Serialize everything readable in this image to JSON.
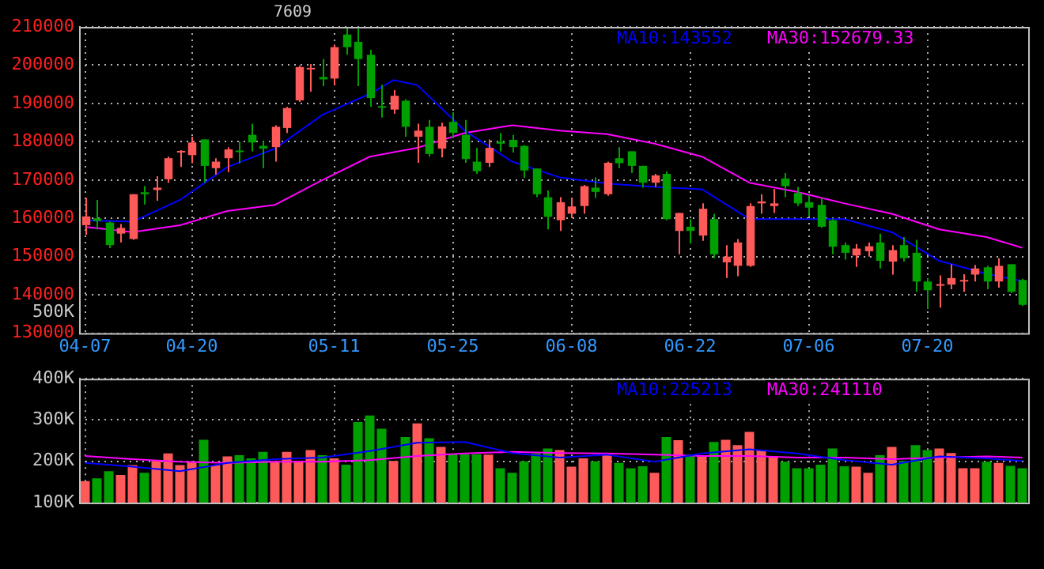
{
  "chart_data": [
    {
      "type": "candlestick",
      "title": "7609",
      "annotations": [
        "500K"
      ],
      "grid": true,
      "legend": "top right",
      "categories": [
        "04-07",
        null,
        null,
        null,
        null,
        null,
        null,
        null,
        null,
        "04-20",
        null,
        null,
        null,
        null,
        null,
        null,
        null,
        null,
        null,
        null,
        null,
        "05-11",
        null,
        null,
        null,
        null,
        null,
        null,
        null,
        null,
        null,
        "05-25",
        null,
        null,
        null,
        null,
        null,
        null,
        null,
        null,
        null,
        "06-08",
        null,
        null,
        null,
        null,
        null,
        null,
        null,
        null,
        null,
        "06-22",
        null,
        null,
        null,
        null,
        null,
        null,
        null,
        null,
        null,
        "07-06",
        null,
        null,
        null,
        null,
        null,
        null,
        null,
        null,
        null,
        "07-20",
        null,
        null,
        null,
        null,
        null,
        null,
        null,
        null
      ],
      "ohlc": [
        [
          158200,
          165300,
          155700,
          160500
        ],
        [
          160000,
          164800,
          157100,
          159300
        ],
        [
          158900,
          159200,
          152200,
          153000
        ],
        [
          156000,
          158500,
          153700,
          157500
        ],
        [
          154600,
          166300,
          154400,
          166300
        ],
        [
          166800,
          168400,
          163600,
          166300
        ],
        [
          167400,
          171000,
          164600,
          168000
        ],
        [
          170200,
          176100,
          169300,
          175700
        ],
        [
          177300,
          177800,
          173400,
          177600
        ],
        [
          176500,
          181300,
          174400,
          179800
        ],
        [
          180600,
          180600,
          169300,
          173700
        ],
        [
          173100,
          175700,
          171400,
          174800
        ],
        [
          175700,
          178600,
          172100,
          178000
        ],
        [
          177700,
          180000,
          174400,
          177400
        ],
        [
          181800,
          184700,
          177500,
          179800
        ],
        [
          178900,
          180200,
          173100,
          178200
        ],
        [
          178600,
          184300,
          174800,
          183900
        ],
        [
          183600,
          189100,
          182300,
          188800
        ],
        [
          190800,
          199900,
          190400,
          199500
        ],
        [
          199100,
          200300,
          193100,
          199300
        ],
        [
          196900,
          201600,
          194500,
          196300
        ],
        [
          196500,
          205400,
          194800,
          204700
        ],
        [
          208000,
          210000,
          202700,
          204700
        ],
        [
          206100,
          209500,
          194500,
          201600
        ],
        [
          202700,
          204000,
          189100,
          191400
        ],
        [
          189300,
          194900,
          186300,
          188900
        ],
        [
          188400,
          193500,
          187300,
          192000
        ],
        [
          190700,
          191100,
          181300,
          183900
        ],
        [
          181300,
          184700,
          174500,
          182900
        ],
        [
          183900,
          185700,
          176100,
          176800
        ],
        [
          178200,
          185000,
          175900,
          184000
        ],
        [
          185200,
          187700,
          180900,
          182300
        ],
        [
          181800,
          185700,
          174500,
          175500
        ],
        [
          174800,
          178400,
          171600,
          172300
        ],
        [
          174500,
          180600,
          173400,
          178400
        ],
        [
          180000,
          182300,
          177500,
          179500
        ],
        [
          180500,
          181800,
          177200,
          178600
        ],
        [
          178900,
          179100,
          170600,
          172500
        ],
        [
          173000,
          173000,
          165500,
          166300
        ],
        [
          165500,
          167300,
          157100,
          160400
        ],
        [
          159500,
          165500,
          156700,
          164200
        ],
        [
          161200,
          165300,
          160100,
          163100
        ],
        [
          163200,
          168700,
          161200,
          168400
        ],
        [
          168000,
          170700,
          165300,
          166900
        ],
        [
          166300,
          174800,
          165900,
          174500
        ],
        [
          175700,
          178600,
          173100,
          174400
        ],
        [
          177500,
          177500,
          171800,
          173700
        ],
        [
          173700,
          173700,
          168000,
          169300
        ],
        [
          169300,
          171600,
          168200,
          171200
        ],
        [
          171600,
          172300,
          159500,
          159800
        ],
        [
          156700,
          161400,
          150600,
          161400
        ],
        [
          157800,
          159800,
          153400,
          156700
        ],
        [
          155500,
          163900,
          154100,
          162500
        ],
        [
          159800,
          161200,
          149600,
          150600
        ],
        [
          148500,
          153000,
          144400,
          150000
        ],
        [
          147600,
          154600,
          144900,
          153700
        ],
        [
          147600,
          163900,
          147300,
          163200
        ],
        [
          163900,
          166300,
          161200,
          164400
        ],
        [
          163200,
          167700,
          161400,
          163900
        ],
        [
          170400,
          171800,
          165500,
          168400
        ],
        [
          166600,
          168200,
          163200,
          163900
        ],
        [
          164200,
          166000,
          160500,
          162800
        ],
        [
          163500,
          165300,
          157500,
          157800
        ],
        [
          159500,
          159800,
          150600,
          152600
        ],
        [
          153000,
          153700,
          149200,
          151000
        ],
        [
          150300,
          153300,
          147300,
          152100
        ],
        [
          151400,
          153700,
          150000,
          152700
        ],
        [
          153700,
          156000,
          146900,
          148900
        ],
        [
          148700,
          153000,
          145300,
          151700
        ],
        [
          153000,
          155100,
          148700,
          149600
        ],
        [
          151000,
          154400,
          140800,
          143500
        ],
        [
          143500,
          144400,
          136300,
          141200
        ],
        [
          142400,
          145100,
          136700,
          142800
        ],
        [
          142700,
          148000,
          141500,
          144400
        ],
        [
          143600,
          145400,
          140800,
          143900
        ],
        [
          145300,
          147800,
          143500,
          146900
        ],
        [
          147200,
          147600,
          141500,
          143500
        ],
        [
          143500,
          149600,
          141900,
          147600
        ],
        [
          148000,
          148000,
          140500,
          140800
        ],
        [
          143900,
          144200,
          137100,
          137400
        ]
      ],
      "colors": [
        "#ff5a5a",
        "#00a000",
        "#00a000",
        "#ff5a5a",
        "#ff5a5a",
        "#00a000",
        "#ff5a5a",
        "#ff5a5a",
        "#ff5a5a",
        "#ff5a5a",
        "#00a000",
        "#ff5a5a",
        "#ff5a5a",
        "#00a000",
        "#00a000",
        "#00a000",
        "#ff5a5a",
        "#ff5a5a",
        "#ff5a5a",
        "#ff5a5a",
        "#00a000",
        "#ff5a5a",
        "#00a000",
        "#00a000",
        "#00a000",
        "#00a000",
        "#ff5a5a",
        "#00a000",
        "#ff5a5a",
        "#00a000",
        "#ff5a5a",
        "#00a000",
        "#00a000",
        "#00a000",
        "#ff5a5a",
        "#00a000",
        "#00a000",
        "#00a000",
        "#00a000",
        "#00a000",
        "#ff5a5a",
        "#ff5a5a",
        "#ff5a5a",
        "#00a000",
        "#ff5a5a",
        "#00a000",
        "#00a000",
        "#00a000",
        "#ff5a5a",
        "#00a000",
        "#ff5a5a",
        "#00a000",
        "#ff5a5a",
        "#00a000",
        "#ff5a5a",
        "#ff5a5a",
        "#ff5a5a",
        "#ff5a5a",
        "#ff5a5a",
        "#00a000",
        "#00a000",
        "#00a000",
        "#00a000",
        "#00a000",
        "#00a000",
        "#ff5a5a",
        "#ff5a5a",
        "#00a000",
        "#ff5a5a",
        "#00a000",
        "#00a000",
        "#00a000",
        "#ff5a5a",
        "#ff5a5a",
        "#ff5a5a",
        "#ff5a5a",
        "#00a000",
        "#ff5a5a",
        "#00a000",
        "#00a000"
      ],
      "ylim": [
        130000,
        210000
      ],
      "yticks": [
        130000,
        140000,
        150000,
        160000,
        170000,
        180000,
        190000,
        200000,
        210000
      ],
      "series": [
        {
          "type": "line",
          "name": "MA10:143552",
          "color": "#0000ff",
          "values": [
            159500,
            null,
            null,
            null,
            159100,
            null,
            null,
            null,
            164800,
            null,
            null,
            null,
            173400,
            null,
            null,
            null,
            178200,
            null,
            null,
            null,
            187000,
            null,
            null,
            null,
            192500,
            null,
            196100,
            null,
            194800,
            null,
            null,
            null,
            182900,
            null,
            null,
            null,
            174800,
            null,
            null,
            null,
            170700,
            null,
            null,
            null,
            169100,
            null,
            null,
            null,
            168200,
            null,
            null,
            null,
            167600,
            null,
            null,
            null,
            159800,
            null,
            null,
            null,
            159800,
            null,
            null,
            null,
            159800,
            null,
            null,
            null,
            156400,
            null,
            null,
            null,
            148900,
            null,
            null,
            null,
            145500,
            null,
            null,
            143600
          ]
        },
        {
          "type": "line",
          "name": "MA30:152679.33",
          "color": "#ff00ff",
          "values": [
            157800,
            null,
            null,
            null,
            156400,
            null,
            null,
            null,
            158200,
            null,
            null,
            null,
            161900,
            null,
            null,
            null,
            163500,
            null,
            null,
            null,
            170000,
            null,
            null,
            null,
            176100,
            null,
            null,
            null,
            178400,
            null,
            null,
            null,
            182300,
            null,
            null,
            null,
            184300,
            null,
            null,
            null,
            182900,
            null,
            null,
            null,
            182000,
            null,
            null,
            null,
            179500,
            null,
            null,
            null,
            176100,
            null,
            null,
            null,
            169300,
            null,
            null,
            null,
            166900,
            null,
            null,
            null,
            163900,
            null,
            null,
            null,
            161200,
            null,
            null,
            null,
            157100,
            null,
            null,
            null,
            155100,
            null,
            null,
            152300
          ]
        }
      ]
    },
    {
      "type": "bar",
      "grid": true,
      "legend": "top right",
      "tick_labels": "y",
      "categories": [
        null,
        null,
        null,
        null,
        null,
        null,
        null,
        null,
        null,
        null,
        null,
        null,
        null,
        null,
        null,
        null,
        null,
        null,
        null,
        null,
        null,
        null,
        null,
        null,
        null,
        null,
        null,
        null,
        null,
        null,
        null,
        null,
        null,
        null,
        null,
        null,
        null,
        null,
        null,
        null,
        null,
        null,
        null,
        null,
        null,
        null,
        null,
        null,
        null,
        null,
        null,
        null,
        null,
        null,
        null,
        null,
        null,
        null,
        null,
        null,
        null,
        null,
        null,
        null,
        null,
        null,
        null,
        null,
        null,
        null,
        null,
        null,
        null,
        null,
        null,
        null,
        null,
        null,
        null,
        null
      ],
      "ylim": [
        100000,
        400000
      ],
      "yticks": [
        {
          "value": 100000,
          "label": "100K"
        },
        {
          "value": 200000,
          "label": "200K"
        },
        {
          "value": 300000,
          "label": "300K"
        },
        {
          "value": 400000,
          "label": "400K"
        }
      ],
      "series": [
        {
          "type": "bar",
          "colors": [
            "#ff5a5a",
            "#00a000",
            "#00a000",
            "#ff5a5a",
            "#ff5a5a",
            "#00a000",
            "#ff5a5a",
            "#ff5a5a",
            "#ff5a5a",
            "#ff5a5a",
            "#00a000",
            "#ff5a5a",
            "#ff5a5a",
            "#00a000",
            "#00a000",
            "#00a000",
            "#ff5a5a",
            "#ff5a5a",
            "#ff5a5a",
            "#ff5a5a",
            "#00a000",
            "#ff5a5a",
            "#00a000",
            "#00a000",
            "#00a000",
            "#00a000",
            "#ff5a5a",
            "#00a000",
            "#ff5a5a",
            "#00a000",
            "#ff5a5a",
            "#00a000",
            "#00a000",
            "#00a000",
            "#ff5a5a",
            "#00a000",
            "#00a000",
            "#00a000",
            "#00a000",
            "#00a000",
            "#ff5a5a",
            "#ff5a5a",
            "#ff5a5a",
            "#00a000",
            "#ff5a5a",
            "#00a000",
            "#00a000",
            "#00a000",
            "#ff5a5a",
            "#00a000",
            "#ff5a5a",
            "#00a000",
            "#ff5a5a",
            "#00a000",
            "#ff5a5a",
            "#ff5a5a",
            "#ff5a5a",
            "#ff5a5a",
            "#ff5a5a",
            "#00a000",
            "#00a000",
            "#00a000",
            "#00a000",
            "#00a000",
            "#00a000",
            "#ff5a5a",
            "#ff5a5a",
            "#00a000",
            "#ff5a5a",
            "#00a000",
            "#00a000",
            "#00a000",
            "#ff5a5a",
            "#ff5a5a",
            "#ff5a5a",
            "#ff5a5a",
            "#00a000",
            "#ff5a5a",
            "#00a000",
            "#00a000"
          ],
          "values": [
            152000,
            159000,
            176000,
            167000,
            191000,
            172000,
            201000,
            219000,
            191000,
            199000,
            252000,
            191000,
            212000,
            215000,
            207000,
            223000,
            199000,
            223000,
            201000,
            227000,
            215000,
            207000,
            192000,
            295000,
            311000,
            279000,
            201000,
            259000,
            292000,
            256000,
            235000,
            217000,
            217000,
            217000,
            216000,
            183000,
            172000,
            200000,
            219000,
            231000,
            227000,
            187000,
            207000,
            200000,
            216000,
            196000,
            183000,
            188000,
            172000,
            259000,
            251000,
            212000,
            212000,
            247000,
            252000,
            239000,
            271000,
            227000,
            212000,
            199000,
            183000,
            183000,
            192000,
            231000,
            188000,
            187000,
            172000,
            215000,
            235000,
            201000,
            239000,
            227000,
            231000,
            220000,
            183000,
            183000,
            199000,
            196000,
            189000,
            183000
          ]
        },
        {
          "type": "line",
          "name": "MA10:225213",
          "color": "#0000ff",
          "values": [
            196000,
            null,
            null,
            null,
            187000,
            null,
            null,
            null,
            176000,
            null,
            null,
            null,
            196000,
            null,
            null,
            null,
            205000,
            null,
            null,
            null,
            209000,
            null,
            null,
            null,
            225000,
            null,
            null,
            null,
            245000,
            null,
            null,
            null,
            247000,
            null,
            null,
            null,
            220000,
            null,
            null,
            null,
            209000,
            null,
            null,
            null,
            216000,
            null,
            null,
            null,
            199000,
            null,
            null,
            null,
            219000,
            null,
            null,
            null,
            229000,
            null,
            null,
            null,
            219000,
            null,
            null,
            null,
            203000,
            null,
            null,
            null,
            192000,
            null,
            null,
            null,
            212000,
            null,
            null,
            null,
            207000,
            null,
            null,
            201000
          ]
        },
        {
          "type": "line",
          "name": "MA30:241110",
          "color": "#ff00ff",
          "values": [
            213000,
            null,
            null,
            null,
            205000,
            null,
            null,
            null,
            199000,
            null,
            null,
            null,
            196000,
            null,
            null,
            null,
            199000,
            null,
            null,
            null,
            199000,
            null,
            null,
            null,
            203000,
            null,
            null,
            null,
            213000,
            null,
            null,
            null,
            219000,
            null,
            null,
            null,
            223000,
            null,
            null,
            null,
            220000,
            null,
            null,
            null,
            219000,
            null,
            null,
            null,
            216000,
            null,
            null,
            null,
            213000,
            null,
            null,
            null,
            213000,
            null,
            null,
            null,
            209000,
            null,
            null,
            null,
            209000,
            null,
            null,
            null,
            205000,
            null,
            null,
            null,
            209000,
            null,
            null,
            null,
            212000,
            null,
            null,
            209000
          ]
        }
      ]
    }
  ]
}
